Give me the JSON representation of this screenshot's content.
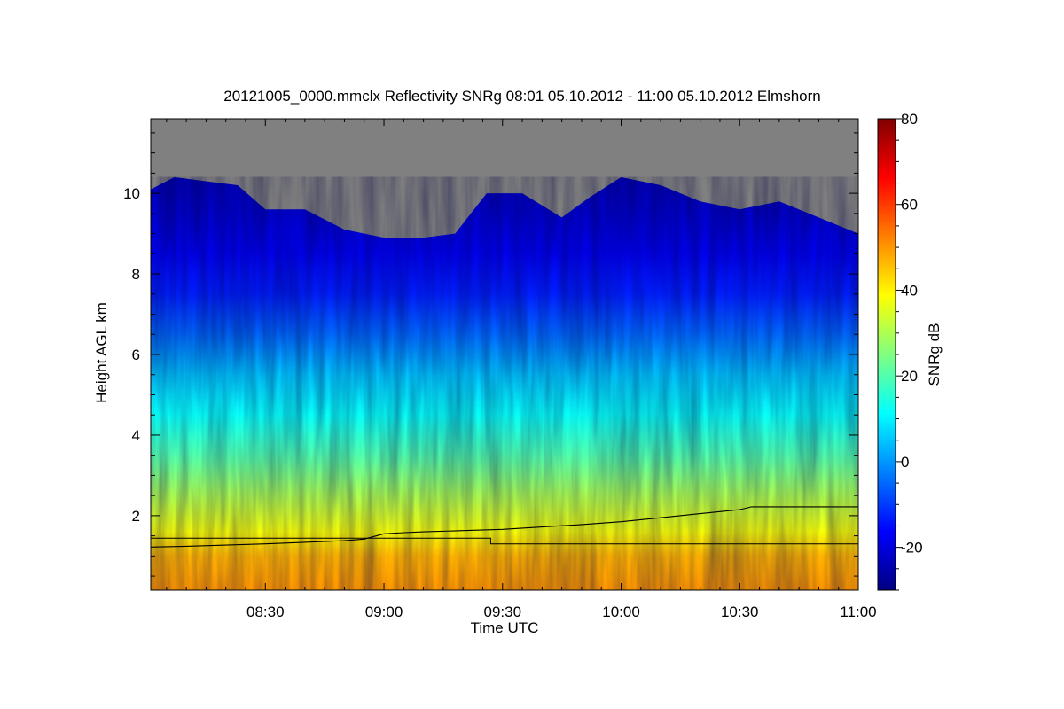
{
  "chart_data": {
    "type": "heatmap",
    "title": "20121005_0000.mmclx Reflectivity SNRg   08:01 05.10.2012 - 11:00 05.10.2012 Elmshorn",
    "xlabel": "Time UTC",
    "ylabel": "Height AGL km",
    "colorbar_label": "SNRg dB",
    "x_range_minutes": [
      481,
      660
    ],
    "y_range_km": [
      0.15,
      11.85
    ],
    "x_ticks": [
      {
        "minute": 510,
        "label": "08:30"
      },
      {
        "minute": 540,
        "label": "09:00"
      },
      {
        "minute": 570,
        "label": "09:30"
      },
      {
        "minute": 600,
        "label": "10:00"
      },
      {
        "minute": 630,
        "label": "10:30"
      },
      {
        "minute": 660,
        "label": "11:00"
      }
    ],
    "y_ticks": [
      {
        "value": 2,
        "label": "2"
      },
      {
        "value": 4,
        "label": "4"
      },
      {
        "value": 6,
        "label": "6"
      },
      {
        "value": 8,
        "label": "8"
      },
      {
        "value": 10,
        "label": "10"
      }
    ],
    "colorbar_range": [
      -30,
      80
    ],
    "colorbar_ticks": [
      {
        "value": -20,
        "label": "-20"
      },
      {
        "value": 0,
        "label": "0"
      },
      {
        "value": 20,
        "label": "20"
      },
      {
        "value": 40,
        "label": "40"
      },
      {
        "value": 60,
        "label": "60"
      },
      {
        "value": 80,
        "label": "80"
      }
    ],
    "no_signal_color": "#808080",
    "colormap": [
      "#000080",
      "#0000ff",
      "#0080ff",
      "#00ffff",
      "#80ff80",
      "#ffff00",
      "#ff8000",
      "#ff0000",
      "#800000"
    ],
    "snr_profile_db": [
      {
        "height_km": 0.2,
        "db": 50
      },
      {
        "height_km": 1.0,
        "db": 47
      },
      {
        "height_km": 1.6,
        "db": 38
      },
      {
        "height_km": 2.5,
        "db": 30
      },
      {
        "height_km": 3.5,
        "db": 20
      },
      {
        "height_km": 4.5,
        "db": 12
      },
      {
        "height_km": 5.5,
        "db": 5
      },
      {
        "height_km": 6.5,
        "db": -5
      },
      {
        "height_km": 7.5,
        "db": -13
      },
      {
        "height_km": 8.5,
        "db": -18
      },
      {
        "height_km": 9.5,
        "db": -22
      },
      {
        "height_km": 10.5,
        "db": -25
      }
    ],
    "echo_top_km": [
      {
        "minute": 481,
        "km": 10.1
      },
      {
        "minute": 487,
        "km": 10.4
      },
      {
        "minute": 495,
        "km": 10.3
      },
      {
        "minute": 503,
        "km": 10.2
      },
      {
        "minute": 510,
        "km": 9.6
      },
      {
        "minute": 520,
        "km": 9.6
      },
      {
        "minute": 530,
        "km": 9.1
      },
      {
        "minute": 540,
        "km": 8.9
      },
      {
        "minute": 550,
        "km": 8.9
      },
      {
        "minute": 558,
        "km": 9.0
      },
      {
        "minute": 566,
        "km": 10.0
      },
      {
        "minute": 575,
        "km": 10.0
      },
      {
        "minute": 585,
        "km": 9.4
      },
      {
        "minute": 592,
        "km": 9.9
      },
      {
        "minute": 600,
        "km": 10.4
      },
      {
        "minute": 610,
        "km": 10.2
      },
      {
        "minute": 620,
        "km": 9.8
      },
      {
        "minute": 630,
        "km": 9.6
      },
      {
        "minute": 640,
        "km": 9.8
      },
      {
        "minute": 650,
        "km": 9.4
      },
      {
        "minute": 660,
        "km": 9.0
      }
    ],
    "series": [
      {
        "x_minutes": [
          481,
          490,
          500,
          510,
          520,
          530,
          535,
          540,
          545,
          550,
          560,
          570,
          580,
          590,
          600,
          610,
          620,
          630,
          633,
          640,
          650,
          660
        ],
        "y_km": [
          1.22,
          1.24,
          1.27,
          1.3,
          1.34,
          1.38,
          1.42,
          1.55,
          1.58,
          1.6,
          1.63,
          1.66,
          1.72,
          1.78,
          1.85,
          1.95,
          2.05,
          2.15,
          2.22,
          2.22,
          2.22,
          2.22
        ]
      },
      {
        "x_minutes": [
          481,
          567,
          567,
          660
        ],
        "y_km": [
          1.44,
          1.44,
          1.3,
          1.3
        ]
      }
    ]
  }
}
